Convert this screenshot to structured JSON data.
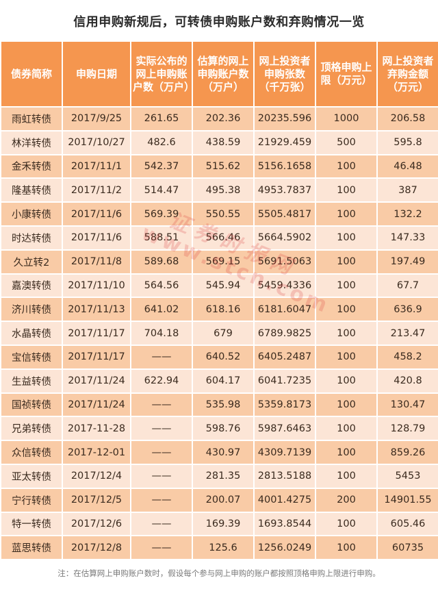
{
  "title": "信用申购新规后，可转债申购账户数和弃购情况一览",
  "table": {
    "headers": [
      "债券简称",
      "申购日期",
      "实际公布的网上申购账户数（万户）",
      "估算的网上申购账户数（万户）",
      "网上投资者申购张数（千万张）",
      "顶格申购上限（万元）",
      "网上投资者弃购金额（万元）"
    ],
    "rows": [
      [
        "雨虹转债",
        "2017/9/25",
        "261.65",
        "202.36",
        "20235.596",
        "1000",
        "206.58"
      ],
      [
        "林洋转债",
        "2017/10/27",
        "482.6",
        "438.59",
        "21929.459",
        "500",
        "595.8"
      ],
      [
        "金禾转债",
        "2017/11/1",
        "542.37",
        "515.62",
        "5156.1658",
        "100",
        "46.48"
      ],
      [
        "隆基转债",
        "2017/11/2",
        "514.47",
        "495.38",
        "4953.7837",
        "100",
        "387"
      ],
      [
        "小康转债",
        "2017/11/6",
        "569.39",
        "550.55",
        "5505.4817",
        "100",
        "132.2"
      ],
      [
        "时达转债",
        "2017/11/6",
        "588.51",
        "566.46",
        "5664.5902",
        "100",
        "147.33"
      ],
      [
        "久立转2",
        "2017/11/8",
        "589.68",
        "569.15",
        "5691.5063",
        "100",
        "197.49"
      ],
      [
        "嘉澳转债",
        "2017/11/10",
        "564.56",
        "545.94",
        "5459.4336",
        "100",
        "67.7"
      ],
      [
        "济川转债",
        "2017/11/13",
        "641.02",
        "618.16",
        "6181.6047",
        "100",
        "636.9"
      ],
      [
        "水晶转债",
        "2017/11/17",
        "704.18",
        "679",
        "6789.9825",
        "100",
        "213.47"
      ],
      [
        "宝信转债",
        "2017/11/17",
        "——",
        "640.52",
        "6405.2487",
        "100",
        "458.2"
      ],
      [
        "生益转债",
        "2017/11/24",
        "622.94",
        "604.17",
        "6041.7235",
        "100",
        "420.8"
      ],
      [
        "国祯转债",
        "2017/11/24",
        "——",
        "535.98",
        "5359.8173",
        "100",
        "130.47"
      ],
      [
        "兄弟转债",
        "2017-11-28",
        "——",
        "598.76",
        "5987.6463",
        "100",
        "128.79"
      ],
      [
        "众信转债",
        "2017-12-01",
        "——",
        "430.97",
        "4309.7139",
        "100",
        "859.26"
      ],
      [
        "亚太转债",
        "2017/12/4",
        "——",
        "281.35",
        "2813.5188",
        "100",
        "5453"
      ],
      [
        "宁行转债",
        "2017/12/5",
        "——",
        "200.07",
        "4001.4275",
        "200",
        "14901.55"
      ],
      [
        "特一转债",
        "2017/12/6",
        "——",
        "169.39",
        "1693.8544",
        "100",
        "605.46"
      ],
      [
        "蓝思转债",
        "2017/12/8",
        "——",
        "125.6",
        "1256.0249",
        "100",
        "60735"
      ]
    ]
  },
  "footnote": "注：在估算网上申购账户数时，假设每个参与网上申购的账户都按照顶格申购上限进行申购。",
  "watermark": {
    "text_cn": "证券时报网",
    "text_url": "www.stcn.com"
  },
  "colors": {
    "header_bg": "#F5964F",
    "row_dark": "#F9CBA6",
    "row_light": "#FCE5D6",
    "header_text": "#FFFFFF"
  }
}
